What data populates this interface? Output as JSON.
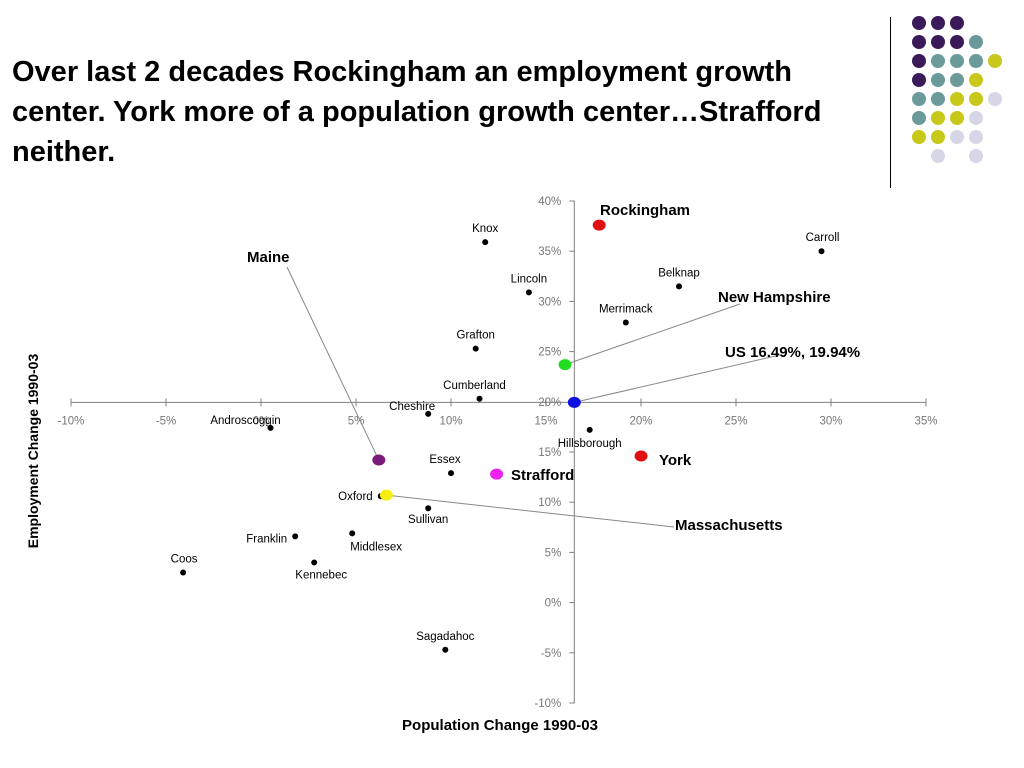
{
  "slide": {
    "title": "Over last 2 decades Rockingham an employment growth center.  York more of a population growth center…Strafford neither."
  },
  "decor": {
    "dot_colors": [
      "#3b1a5a",
      "#6b9a9a",
      "#c8c81a",
      "#d6d6e6"
    ]
  },
  "chart_data": {
    "type": "scatter",
    "xlabel": "Population Change 1990-03",
    "ylabel": "Employment Change 1990-03",
    "xlim": [
      -10,
      35
    ],
    "ylim": [
      -10,
      40
    ],
    "x_ticks": [
      -10,
      -5,
      0,
      5,
      10,
      15,
      20,
      25,
      30,
      35
    ],
    "y_ticks": [
      -10,
      -5,
      0,
      5,
      10,
      15,
      20,
      25,
      30,
      35,
      40
    ],
    "tick_suffix": "%",
    "axes_cross": {
      "x": 16.49,
      "y": 19.94
    },
    "points": [
      {
        "label": "Knox",
        "x": 11.8,
        "y": 35.9
      },
      {
        "label": "Lincoln",
        "x": 14.1,
        "y": 30.9
      },
      {
        "label": "Grafton",
        "x": 11.3,
        "y": 25.3
      },
      {
        "label": "Cumberland",
        "x": 11.5,
        "y": 20.3
      },
      {
        "label": "Cheshire",
        "x": 8.8,
        "y": 18.8
      },
      {
        "label": "Androscoggin",
        "x": 0.5,
        "y": 17.4
      },
      {
        "label": "Essex",
        "x": 10.0,
        "y": 12.9
      },
      {
        "label": "Oxford",
        "x": 6.3,
        "y": 10.6
      },
      {
        "label": "Sullivan",
        "x": 8.8,
        "y": 9.4
      },
      {
        "label": "Franklin",
        "x": 1.8,
        "y": 6.6
      },
      {
        "label": "Middlesex",
        "x": 4.8,
        "y": 6.9
      },
      {
        "label": "Kennebec",
        "x": 2.8,
        "y": 4.0
      },
      {
        "label": "Coos",
        "x": -4.1,
        "y": 3.0
      },
      {
        "label": "Sagadahoc",
        "x": 9.7,
        "y": -4.7
      },
      {
        "label": "Carroll",
        "x": 29.5,
        "y": 35.0
      },
      {
        "label": "Belknap",
        "x": 22.0,
        "y": 31.5
      },
      {
        "label": "Merrimack",
        "x": 19.2,
        "y": 27.9
      },
      {
        "label": "Hillsborough",
        "x": 17.3,
        "y": 17.2
      }
    ],
    "highlights": [
      {
        "label": "Rockingham",
        "x": 17.8,
        "y": 37.6,
        "color": "#e01010"
      },
      {
        "label": "York",
        "x": 20.0,
        "y": 14.6,
        "color": "#e01010"
      },
      {
        "label": "Strafford",
        "x": 12.4,
        "y": 12.8,
        "color": "#ee22ee"
      },
      {
        "label": "Maine",
        "x": 6.2,
        "y": 14.2,
        "color": "#7a1a7a"
      },
      {
        "label": "New Hampshire",
        "x": 16.0,
        "y": 23.7,
        "color": "#22dd22"
      },
      {
        "label": "US 16.49%, 19.94%",
        "x": 16.49,
        "y": 19.94,
        "color": "#1010e0"
      },
      {
        "label": "Massachusetts",
        "x": 6.6,
        "y": 10.7,
        "color": "#f5ee10"
      }
    ]
  }
}
